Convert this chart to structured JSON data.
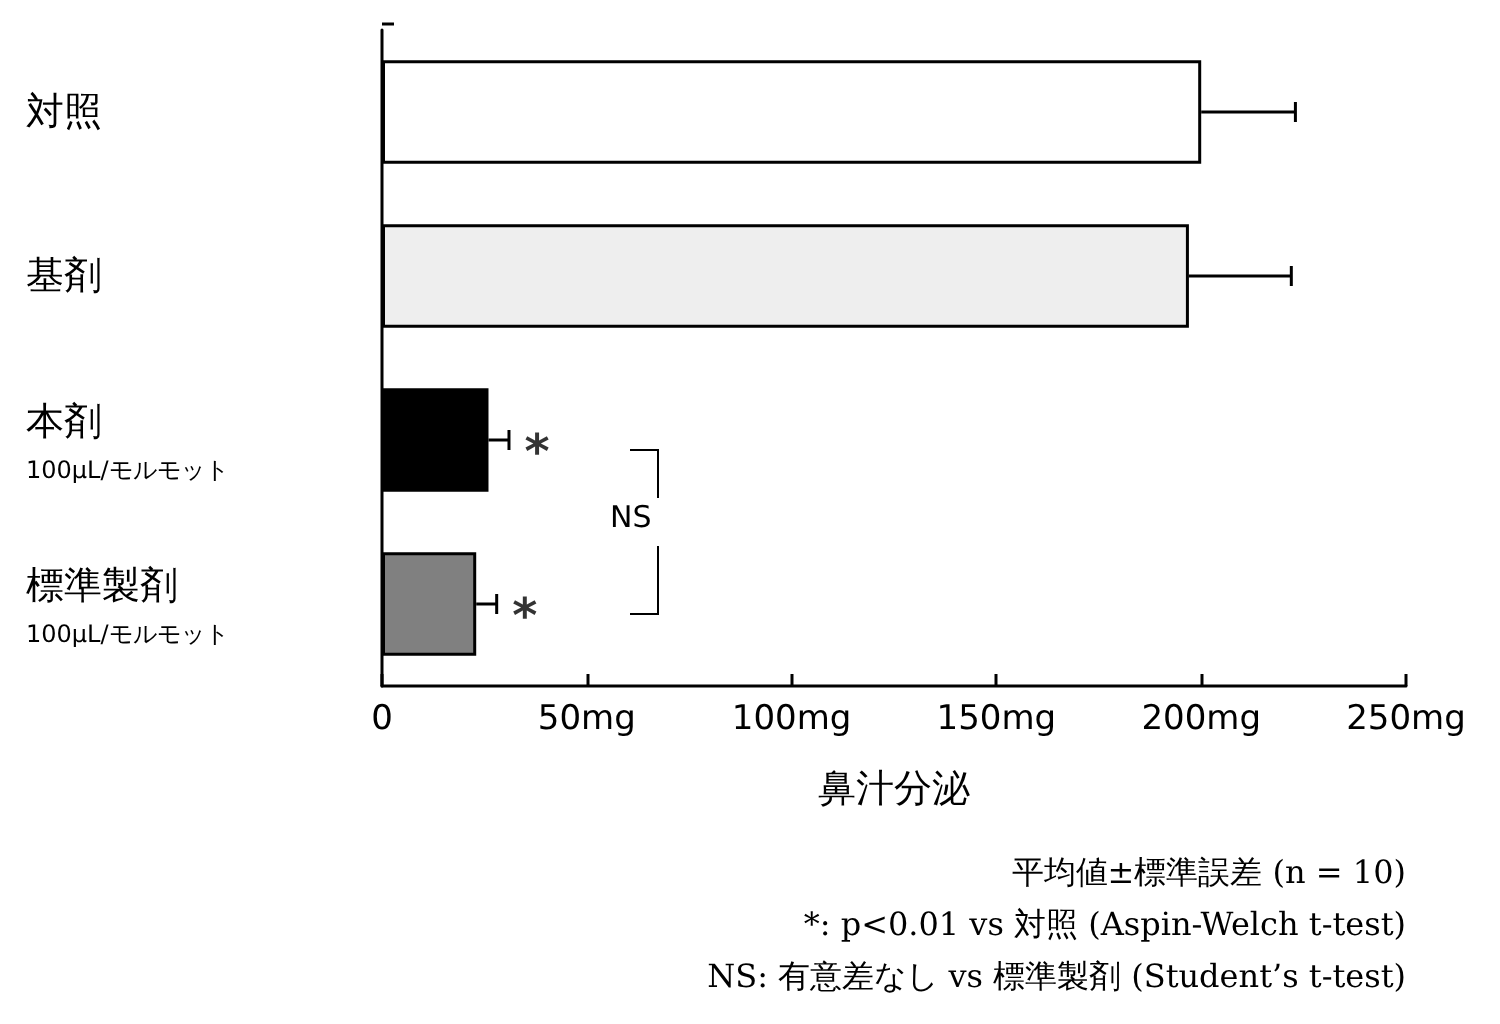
{
  "chart_data": {
    "type": "bar",
    "orientation": "horizontal",
    "categories": [
      "対照",
      "基剤",
      "本剤\n100μL/モルモット",
      "標準製剤\n100μL/モルモット"
    ],
    "values": [
      200,
      197,
      26,
      23
    ],
    "colors": [
      "#ffffff",
      "#eeeeee",
      "#000000",
      "#808080"
    ],
    "errors": [
      [
        200,
        223
      ],
      [
        197,
        222
      ],
      [
        26,
        31
      ],
      [
        23,
        28
      ]
    ],
    "xlim": [
      0,
      250
    ],
    "xticks": [
      0,
      {
        "value": 50,
        "label": "50mg"
      },
      {
        "value": 100,
        "label": "100mg"
      },
      {
        "value": 150,
        "label": "150mg"
      },
      {
        "value": 200,
        "label": "200mg"
      },
      {
        "value": 250,
        "label": "250mg"
      }
    ],
    "xlabel": "鼻汁分泌",
    "grid": false,
    "annotations": [
      {
        "text": "*",
        "x": 31,
        "y": "本剤\n100μL/モルモット"
      },
      {
        "text": "*",
        "x": 28,
        "y": "標準製剤\n100μL/モルモット"
      },
      "NS",
      "平均値±標準誤差 (n = 10)",
      "*: p<0.01 vs 対照 (Aspin-Welch t-test)",
      "NS: 有意差なし vs 標準製剤 (Student’s t-test)"
    ]
  }
}
